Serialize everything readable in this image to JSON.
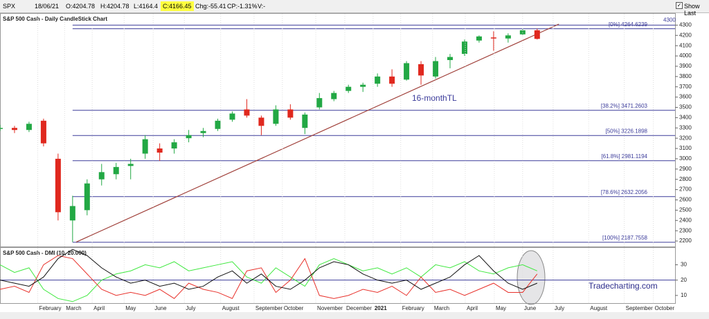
{
  "toolbar": {
    "symbol": "SPX",
    "date": "18/06/21",
    "open": "O:4204.78",
    "high": "H:4204.78",
    "low": "L:4164.4",
    "close": "C:4166.45",
    "change": "Chg:-55.41",
    "change_pct": "CP:-1.31%",
    "volume": "V:-",
    "show_last": "Show Last"
  },
  "chart_data": [
    {
      "type": "candlestick",
      "title": "S&P 500 Cash - Daily CandleStick Chart",
      "x": [
        0,
        2,
        4,
        6,
        8,
        10,
        12,
        14,
        16,
        18,
        20,
        22,
        24,
        26,
        28,
        30,
        32,
        34,
        36,
        38,
        40,
        42,
        44,
        46,
        48,
        50,
        52,
        54,
        56,
        58,
        60,
        62,
        64,
        66,
        68,
        70,
        72,
        74
      ],
      "open": [
        3290,
        3300,
        3280,
        3370,
        3000,
        2400,
        2500,
        2800,
        2850,
        2930,
        3050,
        3100,
        3100,
        3200,
        3250,
        3290,
        3380,
        3480,
        3400,
        3340,
        3480,
        3300,
        3500,
        3580,
        3660,
        3700,
        3730,
        3800,
        3770,
        3920,
        3800,
        3960,
        4020,
        4150,
        4180,
        4170,
        4210,
        4250
      ],
      "high": [
        3330,
        3320,
        3360,
        3390,
        3050,
        2640,
        2800,
        2950,
        2960,
        3000,
        3230,
        3150,
        3190,
        3280,
        3300,
        3390,
        3460,
        3580,
        3420,
        3520,
        3530,
        3450,
        3640,
        3660,
        3720,
        3740,
        3830,
        3870,
        3950,
        3950,
        3990,
        4020,
        4160,
        4200,
        4240,
        4220,
        4260,
        4265
      ],
      "low": [
        3270,
        3250,
        3260,
        3120,
        2400,
        2190,
        2450,
        2740,
        2800,
        2800,
        3000,
        2980,
        3050,
        3160,
        3210,
        3270,
        3360,
        3400,
        3230,
        3320,
        3380,
        3240,
        3480,
        3560,
        3640,
        3650,
        3700,
        3700,
        3760,
        3720,
        3780,
        3880,
        4000,
        4130,
        4050,
        4130,
        4200,
        4160
      ],
      "close": [
        3300,
        3280,
        3340,
        3150,
        2480,
        2540,
        2760,
        2870,
        2920,
        2950,
        3190,
        3060,
        3160,
        3230,
        3270,
        3370,
        3440,
        3420,
        3320,
        3480,
        3400,
        3430,
        3590,
        3640,
        3700,
        3720,
        3800,
        3730,
        3930,
        3810,
        3950,
        3990,
        4140,
        4190,
        4170,
        4200,
        4250,
        4166
      ],
      "up_color": "#22a844",
      "down_color": "#e0281e",
      "xlim": [
        0,
        93
      ],
      "ylim": [
        2160,
        4410
      ],
      "yticks": [
        2200,
        2300,
        2400,
        2500,
        2600,
        2700,
        2800,
        2900,
        3000,
        3100,
        3200,
        3300,
        3400,
        3500,
        3600,
        3700,
        3800,
        3900,
        4000,
        4100,
        4200,
        4300
      ],
      "reference_line": 4300,
      "fib_levels": [
        {
          "value": 4264.6239,
          "label": "[0%] 4264.6239"
        },
        {
          "value": 3471.2603,
          "label": "[38.2%] 3471.2603"
        },
        {
          "value": 3226.1898,
          "label": "[50%] 3226.1898"
        },
        {
          "value": 2981.1194,
          "label": "[61.8%] 2981.1194"
        },
        {
          "value": 2632.2056,
          "label": "[78.6%] 2632.2056"
        },
        {
          "value": 2187.7558,
          "label": "[100%] 2187.7558"
        }
      ],
      "fib_color": "#3b3b9a",
      "trendline": {
        "label": "16-monthTL",
        "x": [
          10.5,
          77
        ],
        "y": [
          2190,
          4310
        ],
        "color": "#a0403a"
      }
    },
    {
      "type": "line",
      "title": "S&P 500 Cash - DMI (10, 20.000)",
      "x": [
        0,
        2,
        4,
        6,
        8,
        10,
        12,
        14,
        16,
        18,
        20,
        22,
        24,
        26,
        28,
        30,
        32,
        34,
        36,
        38,
        40,
        42,
        44,
        46,
        48,
        50,
        52,
        54,
        56,
        58,
        60,
        62,
        64,
        66,
        68,
        70,
        72,
        74
      ],
      "series": [
        {
          "color": "#3ee83e",
          "values": [
            30,
            25,
            28,
            14,
            8,
            6,
            10,
            20,
            24,
            26,
            30,
            28,
            32,
            26,
            28,
            30,
            32,
            22,
            18,
            28,
            22,
            16,
            30,
            34,
            30,
            26,
            28,
            24,
            28,
            22,
            30,
            28,
            32,
            26,
            24,
            28,
            30,
            26
          ]
        },
        {
          "color": "#e8302a",
          "values": [
            14,
            16,
            12,
            30,
            36,
            34,
            24,
            14,
            10,
            12,
            10,
            14,
            8,
            18,
            14,
            12,
            8,
            26,
            28,
            12,
            20,
            34,
            10,
            8,
            10,
            14,
            12,
            16,
            10,
            22,
            12,
            14,
            10,
            14,
            18,
            12,
            12,
            24
          ]
        },
        {
          "color": "#111111",
          "values": [
            20,
            18,
            16,
            22,
            34,
            40,
            36,
            28,
            22,
            18,
            20,
            16,
            18,
            14,
            16,
            22,
            26,
            18,
            24,
            16,
            14,
            20,
            28,
            32,
            30,
            24,
            20,
            18,
            20,
            14,
            18,
            22,
            30,
            36,
            26,
            18,
            14,
            18
          ]
        }
      ],
      "reference_line": 20,
      "reference_color": "#3b3b9a",
      "xlim": [
        0,
        93
      ],
      "ylim": [
        5,
        41
      ],
      "yticks": [
        10,
        20,
        30
      ],
      "xticks": [
        {
          "value": 5.2,
          "label": "February"
        },
        {
          "value": 8.9,
          "label": "March"
        },
        {
          "value": 12.7,
          "label": "April"
        },
        {
          "value": 17.1,
          "label": "May"
        },
        {
          "value": 21.1,
          "label": "June"
        },
        {
          "value": 25.4,
          "label": "July"
        },
        {
          "value": 30.4,
          "label": "August"
        },
        {
          "value": 35.0,
          "label": "September"
        },
        {
          "value": 38.9,
          "label": "October"
        },
        {
          "value": 43.5,
          "label": "November"
        },
        {
          "value": 47.5,
          "label": "December"
        },
        {
          "value": 51.4,
          "label": "2021"
        },
        {
          "value": 55.2,
          "label": "February"
        },
        {
          "value": 59.6,
          "label": "March"
        },
        {
          "value": 64.1,
          "label": "April"
        },
        {
          "value": 68.1,
          "label": "May"
        },
        {
          "value": 72.0,
          "label": "June"
        },
        {
          "value": 76.2,
          "label": "July"
        },
        {
          "value": 81.1,
          "label": "August"
        },
        {
          "value": 86.0,
          "label": "September"
        },
        {
          "value": 90.0,
          "label": "October"
        }
      ],
      "grid": true,
      "watermark": "Tradecharting.com"
    }
  ]
}
